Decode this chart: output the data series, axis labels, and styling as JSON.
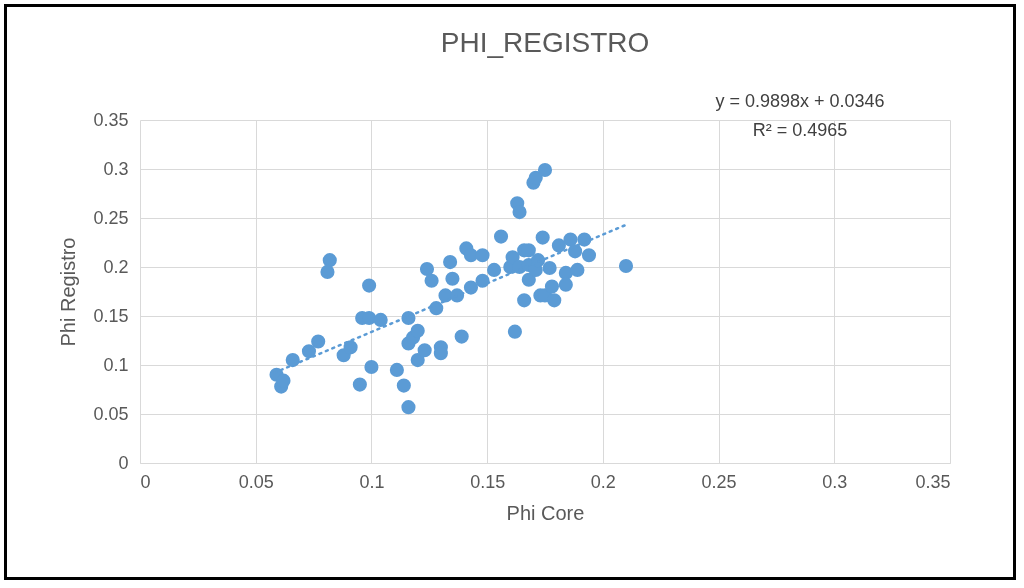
{
  "chart_data": {
    "type": "scatter",
    "title": "PHI_REGISTRO",
    "xlabel": "Phi Core",
    "ylabel": "Phi Registro",
    "xlim": [
      0,
      0.35
    ],
    "xticks": [
      0,
      0.05,
      0.1,
      0.15,
      0.2,
      0.25,
      0.3,
      0.35
    ],
    "ylim": [
      0,
      0.35
    ],
    "yticks": [
      0,
      0.05,
      0.1,
      0.15,
      0.2,
      0.25,
      0.3,
      0.35
    ],
    "grid": true,
    "marker": "circle",
    "annotations": [
      "y = 0.9898x + 0.0346",
      "R² = 0.4965"
    ],
    "series": [
      {
        "color": "#5b9bd5",
        "x": [
          0.059,
          0.061,
          0.062,
          0.066,
          0.073,
          0.077,
          0.082,
          0.081,
          0.088,
          0.091,
          0.095,
          0.096,
          0.099,
          0.099,
          0.1,
          0.104,
          0.111,
          0.114,
          0.116,
          0.116,
          0.116,
          0.118,
          0.12,
          0.12,
          0.123,
          0.124,
          0.126,
          0.128,
          0.13,
          0.13,
          0.132,
          0.134,
          0.135,
          0.137,
          0.139,
          0.141,
          0.143,
          0.143,
          0.148,
          0.148,
          0.153,
          0.156,
          0.16,
          0.161,
          0.162,
          0.163,
          0.164,
          0.164,
          0.166,
          0.166,
          0.168,
          0.168,
          0.168,
          0.17,
          0.171,
          0.171,
          0.172,
          0.173,
          0.174,
          0.175,
          0.175,
          0.177,
          0.178,
          0.179,
          0.181,
          0.184,
          0.184,
          0.186,
          0.188,
          0.189,
          0.192,
          0.194,
          0.21
        ],
        "values": [
          0.09,
          0.078,
          0.084,
          0.105,
          0.114,
          0.124,
          0.207,
          0.195,
          0.11,
          0.118,
          0.08,
          0.148,
          0.181,
          0.148,
          0.098,
          0.146,
          0.095,
          0.079,
          0.057,
          0.148,
          0.122,
          0.128,
          0.135,
          0.105,
          0.115,
          0.198,
          0.186,
          0.158,
          0.118,
          0.112,
          0.171,
          0.205,
          0.188,
          0.171,
          0.129,
          0.219,
          0.212,
          0.179,
          0.212,
          0.186,
          0.197,
          0.231,
          0.2,
          0.21,
          0.134,
          0.265,
          0.256,
          0.2,
          0.217,
          0.166,
          0.202,
          0.217,
          0.187,
          0.286,
          0.291,
          0.197,
          0.207,
          0.171,
          0.23,
          0.299,
          0.171,
          0.199,
          0.18,
          0.166,
          0.222,
          0.194,
          0.182,
          0.228,
          0.216,
          0.197,
          0.228,
          0.212,
          0.201
        ]
      },
      {
        "type": "line",
        "color": "#5b9bd5",
        "line_style": "dotted",
        "marker": "none",
        "x": [
          0.058,
          0.21
        ],
        "values": [
          0.092,
          0.243
        ]
      }
    ]
  }
}
